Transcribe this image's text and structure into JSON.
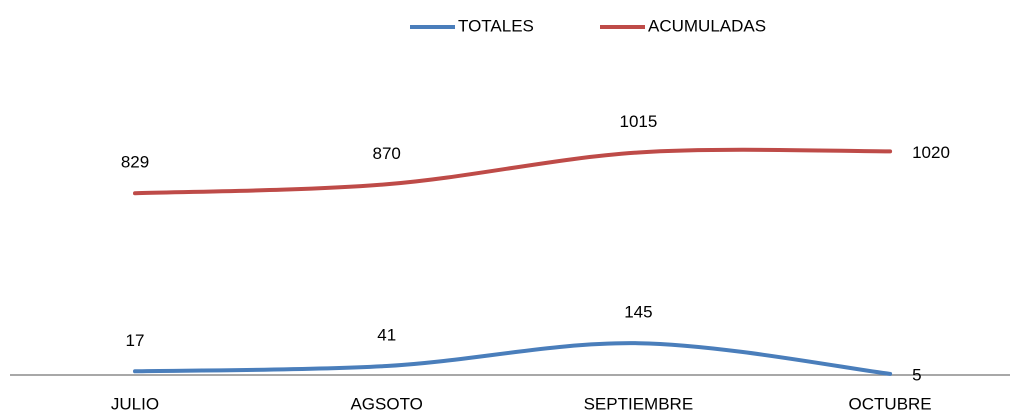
{
  "chart_data": {
    "type": "line",
    "categories": [
      "JULIO",
      "AGSOTO",
      "SEPTIEMBRE",
      "OCTUBRE"
    ],
    "series": [
      {
        "name": "TOTALES",
        "color": "#4a7ebb",
        "values": [
          17,
          41,
          145,
          5
        ]
      },
      {
        "name": "ACUMULADAS",
        "color": "#be4b48",
        "values": [
          829,
          870,
          1015,
          1020
        ]
      }
    ],
    "ylim": [
      0,
      1300
    ],
    "smooth": true,
    "data_labels": true,
    "legend": "top"
  }
}
